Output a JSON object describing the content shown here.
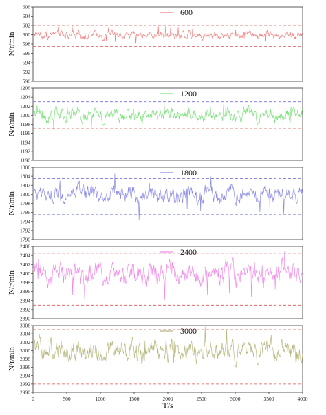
{
  "chart_data": {
    "type": "line",
    "xlabel": "T/s",
    "xlim": [
      0,
      4000
    ],
    "xticks": [
      "0",
      "500",
      "1000",
      "1500",
      "2000",
      "2500",
      "3000",
      "3500",
      "4000"
    ],
    "xtick_values": [
      0,
      500,
      1000,
      1500,
      2000,
      2500,
      3000,
      3500,
      4000
    ],
    "panels": [
      {
        "series_name": "600",
        "ylabel": "N/r/min",
        "color": "#f08080",
        "ylim": [
          590,
          606
        ],
        "yticks": [
          "590",
          "592",
          "594",
          "596",
          "598",
          "600",
          "602",
          "604",
          "606"
        ],
        "upper_bound": 602,
        "lower_bound": 597.5,
        "upper_color": "#e05050",
        "lower_color": "#e05050",
        "center": 600,
        "amplitude": 0.6,
        "spike": 1.6
      },
      {
        "series_name": "1200",
        "ylabel": "N/r/min",
        "color": "#7ee07e",
        "ylim": [
          1190,
          1206
        ],
        "yticks": [
          "1190",
          "1192",
          "1194",
          "1196",
          "1198",
          "1200",
          "1202",
          "1204",
          "1206"
        ],
        "upper_bound": 1203,
        "lower_bound": 1197,
        "upper_color": "#7070e0",
        "lower_color": "#e05050",
        "center": 1200,
        "amplitude": 1.1,
        "spike": 2.2
      },
      {
        "series_name": "1800",
        "ylabel": "N/r/min",
        "color": "#8a8ae6",
        "ylim": [
          1790,
          1806
        ],
        "yticks": [
          "1790",
          "1792",
          "1794",
          "1796",
          "1798",
          "1800",
          "1802",
          "1804",
          "1806"
        ],
        "upper_bound": 1803.5,
        "lower_bound": 1795.5,
        "upper_color": "#6060d8",
        "lower_color": "#6060d8",
        "center": 1800,
        "amplitude": 1.4,
        "spike": 3.2
      },
      {
        "series_name": "2400",
        "ylabel": "N/r/min",
        "color": "#f08ae8",
        "ylim": [
          2390,
          2406
        ],
        "yticks": [
          "2390",
          "2392",
          "2394",
          "2396",
          "2398",
          "2400",
          "2402",
          "2404",
          "2406"
        ],
        "upper_bound": 2404.5,
        "lower_bound": 2393,
        "upper_color": "#e05050",
        "lower_color": "#e05050",
        "center": 2400,
        "amplitude": 1.9,
        "spike": 4.2
      },
      {
        "series_name": "3000",
        "ylabel": "N/r/min",
        "color": "#b8b880",
        "ylim": [
          2990,
          3006
        ],
        "yticks": [
          "2990",
          "2992",
          "2994",
          "2996",
          "2998",
          "3000",
          "3002",
          "3004",
          "3006"
        ],
        "upper_bound": 3005,
        "lower_bound": 2992,
        "upper_color": "#e05050",
        "lower_color": "#e05050",
        "center": 3000,
        "amplitude": 2.0,
        "spike": 4.8
      }
    ]
  }
}
